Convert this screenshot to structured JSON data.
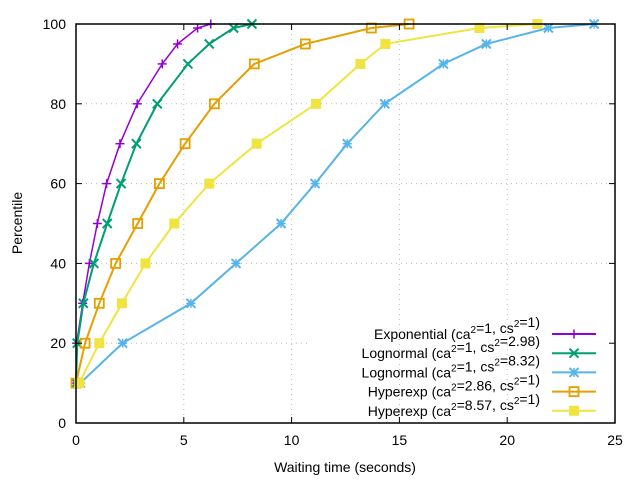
{
  "chart_data": {
    "type": "line",
    "title": "",
    "xlabel": "Waiting time (seconds)",
    "ylabel": "Percentile",
    "xlim": [
      0,
      25
    ],
    "ylim": [
      0,
      100
    ],
    "xticks": [
      "0",
      "5",
      "10",
      "15",
      "20",
      "25"
    ],
    "yticks": [
      "0",
      "20",
      "40",
      "60",
      "80",
      "100"
    ],
    "grid": true,
    "legend_position": "bottom-right",
    "series": [
      {
        "name": "Exponential",
        "ca2": "1",
        "cs2": "1",
        "color": "#9400d3",
        "marker": "plus",
        "x": [
          0,
          0.03,
          0.31,
          0.62,
          0.99,
          1.42,
          2.04,
          2.84,
          4.0,
          4.71,
          5.64,
          6.25
        ],
        "y": [
          10,
          20,
          30,
          40,
          50,
          60,
          70,
          80,
          90,
          95,
          99,
          100
        ]
      },
      {
        "name": "Lognormal",
        "ca2": "1",
        "cs2": "2.98",
        "color": "#009e73",
        "marker": "cross",
        "x": [
          0,
          0.06,
          0.34,
          0.83,
          1.45,
          2.09,
          2.8,
          3.77,
          5.19,
          6.18,
          7.31,
          8.16
        ],
        "y": [
          10,
          20,
          30,
          40,
          50,
          60,
          70,
          80,
          90,
          95,
          99,
          100
        ]
      },
      {
        "name": "Lognormal",
        "ca2": "1",
        "cs2": "8.32",
        "color": "#56b4e9",
        "marker": "star",
        "x": [
          0.2,
          2.16,
          5.33,
          7.42,
          9.51,
          11.09,
          12.58,
          14.32,
          17.04,
          19.03,
          21.91,
          24.03
        ],
        "y": [
          10,
          20,
          30,
          40,
          50,
          60,
          70,
          80,
          90,
          95,
          99,
          100
        ]
      },
      {
        "name": "Hyperexp",
        "ca2": "2.86",
        "cs2": "1",
        "color": "#e69f00",
        "marker": "open-square",
        "x": [
          0,
          0.42,
          1.08,
          1.84,
          2.86,
          3.87,
          5.06,
          6.42,
          8.27,
          10.64,
          13.7,
          15.45
        ],
        "y": [
          10,
          20,
          30,
          40,
          50,
          60,
          70,
          80,
          90,
          95,
          99,
          100
        ]
      },
      {
        "name": "Hyperexp",
        "ca2": "8.57",
        "cs2": "1",
        "color": "#f0e442",
        "marker": "filled-square",
        "x": [
          0.15,
          1.08,
          2.13,
          3.22,
          4.56,
          6.18,
          8.38,
          11.13,
          13.19,
          14.35,
          18.71,
          21.4
        ],
        "y": [
          10,
          20,
          30,
          40,
          50,
          60,
          70,
          80,
          90,
          95,
          99,
          100
        ]
      }
    ]
  }
}
